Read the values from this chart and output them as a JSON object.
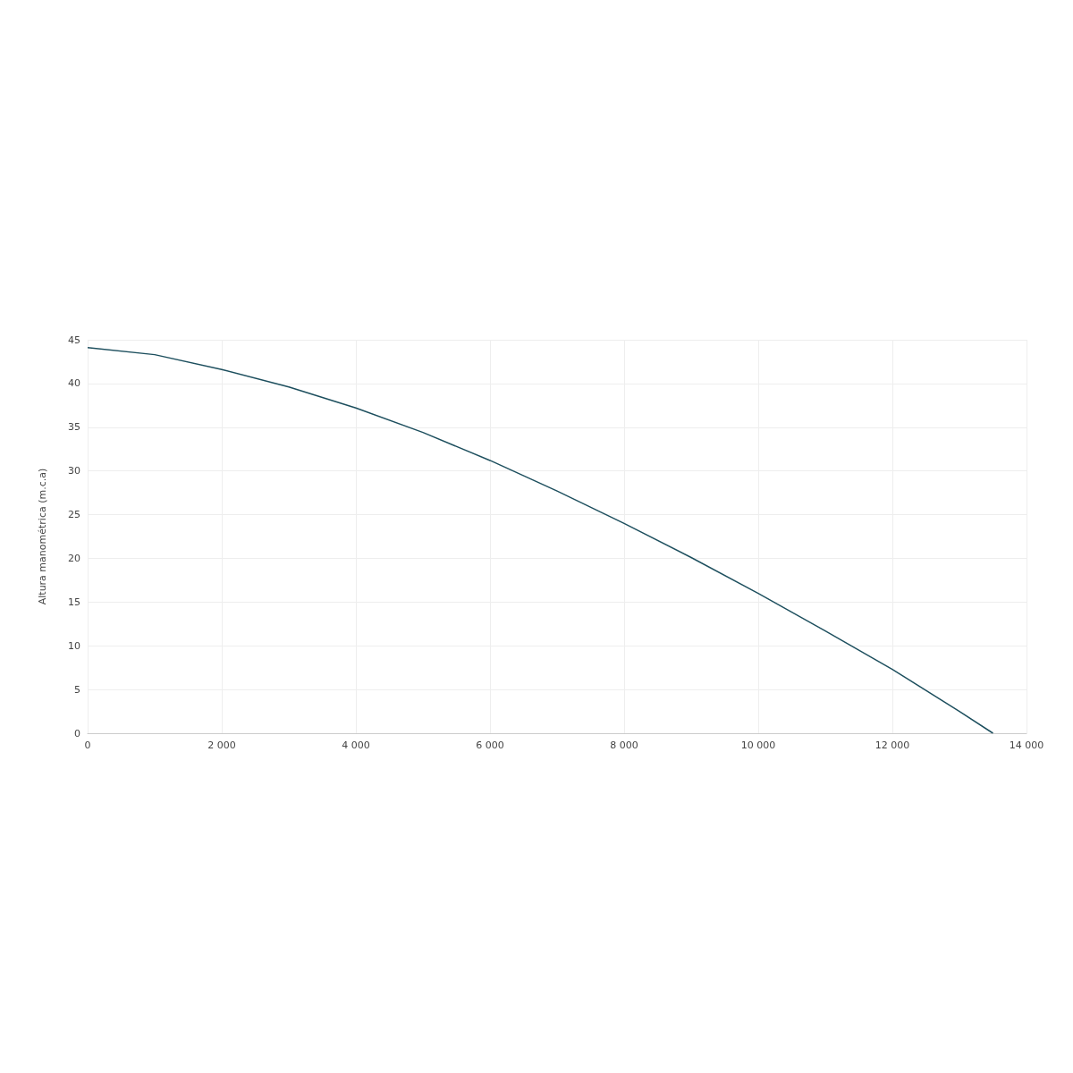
{
  "chart_data": {
    "type": "line",
    "ylabel": "Altura manométrica (m.c.a)",
    "x": [
      0,
      1000,
      2000,
      3000,
      4000,
      5000,
      6000,
      7000,
      8000,
      9000,
      10000,
      11000,
      12000,
      13000,
      13500
    ],
    "series": [
      {
        "color": "#1d4f5e",
        "values": [
          44.1,
          43.3,
          41.6,
          39.6,
          37.2,
          34.4,
          31.2,
          27.7,
          24.0,
          20.1,
          16.0,
          11.7,
          7.3,
          2.5,
          0
        ]
      }
    ],
    "xlim": [
      0,
      14000
    ],
    "xticks": [
      {
        "value": 0,
        "label": "0"
      },
      {
        "value": 2000,
        "label": "2 000"
      },
      {
        "value": 4000,
        "label": "4 000"
      },
      {
        "value": 6000,
        "label": "6 000"
      },
      {
        "value": 8000,
        "label": "8 000"
      },
      {
        "value": 10000,
        "label": "10 000"
      },
      {
        "value": 12000,
        "label": "12 000"
      },
      {
        "value": 14000,
        "label": "14 000"
      }
    ],
    "ylim": [
      0,
      45
    ],
    "yticks": [
      0,
      5,
      10,
      15,
      20,
      25,
      30,
      35,
      40,
      45
    ],
    "grid": true
  }
}
